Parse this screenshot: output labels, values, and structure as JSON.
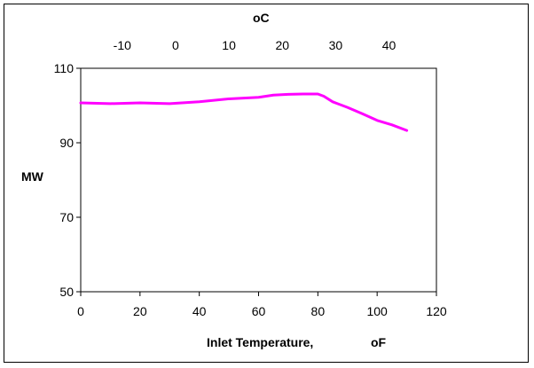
{
  "chart_data": {
    "type": "line",
    "title": "",
    "xlabel": "Inlet Temperature,",
    "xlabel_unit": "oF",
    "ylabel": "MW",
    "xlim": [
      0,
      120
    ],
    "ylim": [
      50,
      110
    ],
    "x_ticks": [
      0,
      20,
      40,
      60,
      80,
      100,
      120
    ],
    "y_ticks": [
      50,
      70,
      90,
      110
    ],
    "secondary_x_axis": {
      "position": "top",
      "label": "oC",
      "ticks": [
        -10,
        0,
        10,
        20,
        30,
        40
      ]
    },
    "grid": false,
    "legend": "none",
    "series": [
      {
        "color": "#ff00ff",
        "x": [
          0,
          10,
          20,
          30,
          40,
          50,
          55,
          60,
          65,
          70,
          75,
          80,
          82,
          85,
          90,
          95,
          100,
          105,
          110
        ],
        "y": [
          100.7,
          100.5,
          100.7,
          100.5,
          101.0,
          101.8,
          102.0,
          102.2,
          102.8,
          103.0,
          103.1,
          103.1,
          102.5,
          101.0,
          99.5,
          97.8,
          96.0,
          94.8,
          93.3
        ]
      }
    ]
  }
}
